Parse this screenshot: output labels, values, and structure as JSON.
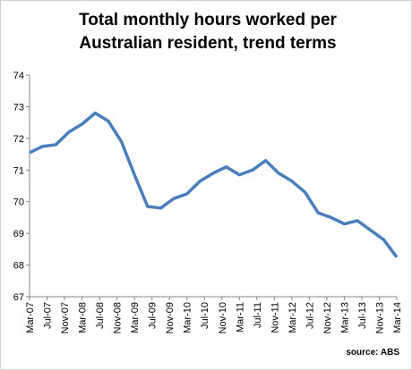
{
  "chart_data": {
    "type": "line",
    "title": [
      "Total monthly hours worked per",
      "Australian resident, trend terms"
    ],
    "source": "source: ABS",
    "x": [
      0,
      3,
      6,
      9,
      12,
      15,
      18,
      21,
      24,
      27,
      30,
      33,
      36,
      39,
      42,
      45,
      48,
      51,
      54,
      57,
      60,
      63,
      66,
      69,
      72,
      75,
      78,
      81,
      84
    ],
    "series": [
      {
        "color": "#4a7ebb",
        "values": [
          71.55,
          71.75,
          71.8,
          72.2,
          72.45,
          72.8,
          72.55,
          71.9,
          70.85,
          69.85,
          69.8,
          70.1,
          70.25,
          70.65,
          70.9,
          71.1,
          70.85,
          71.0,
          71.3,
          70.9,
          70.65,
          70.3,
          69.65,
          69.5,
          69.3,
          69.4,
          69.1,
          68.8,
          68.25
        ]
      }
    ],
    "xlim": [
      0,
      84
    ],
    "xticks": [
      {
        "value": 0,
        "label": "Mar-07"
      },
      {
        "value": 4,
        "label": "Jul-07"
      },
      {
        "value": 8,
        "label": "Nov-07"
      },
      {
        "value": 12,
        "label": "Mar-08"
      },
      {
        "value": 16,
        "label": "Jul-08"
      },
      {
        "value": 20,
        "label": "Nov-08"
      },
      {
        "value": 24,
        "label": "Mar-09"
      },
      {
        "value": 28,
        "label": "Jul-09"
      },
      {
        "value": 32,
        "label": "Nov-09"
      },
      {
        "value": 36,
        "label": "Mar-10"
      },
      {
        "value": 40,
        "label": "Jul-10"
      },
      {
        "value": 44,
        "label": "Nov-10"
      },
      {
        "value": 48,
        "label": "Mar-11"
      },
      {
        "value": 52,
        "label": "Jul-11"
      },
      {
        "value": 56,
        "label": "Nov-11"
      },
      {
        "value": 60,
        "label": "Mar-12"
      },
      {
        "value": 64,
        "label": "Jul-12"
      },
      {
        "value": 68,
        "label": "Nov-12"
      },
      {
        "value": 72,
        "label": "Mar-13"
      },
      {
        "value": 76,
        "label": "Jul-13"
      },
      {
        "value": 80,
        "label": "Nov-13"
      },
      {
        "value": 84,
        "label": "Mar-14"
      }
    ],
    "ylim": [
      67,
      74
    ],
    "yticks": [
      67,
      68,
      69,
      70,
      71,
      72,
      73,
      74
    ]
  }
}
